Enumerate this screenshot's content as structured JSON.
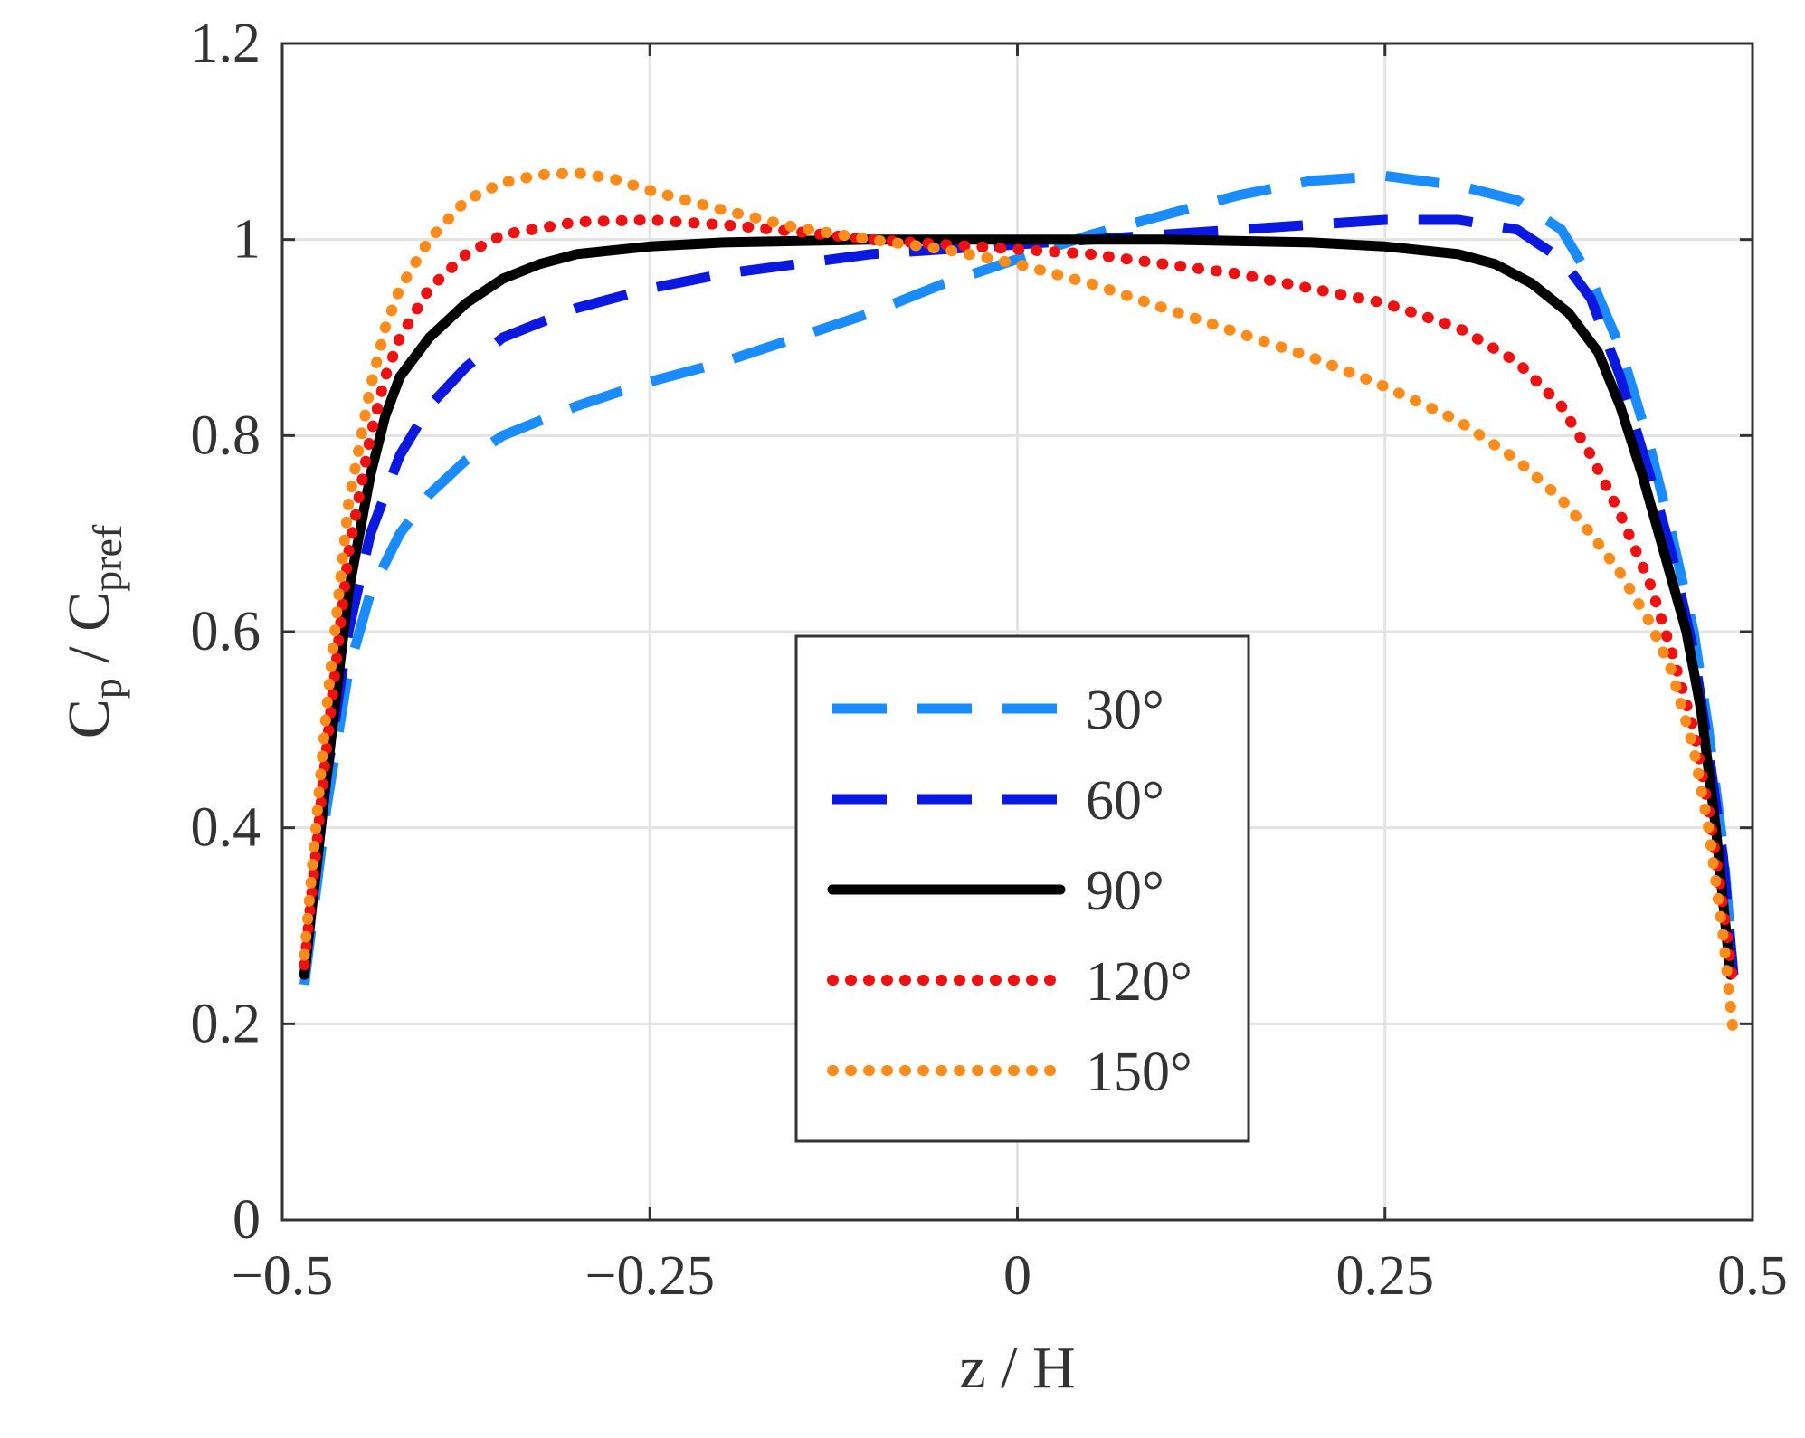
{
  "chart_data": {
    "type": "line",
    "title": "",
    "xlabel": "z / H",
    "ylabel": {
      "main": "C",
      "sub1": "p",
      "sep": " / C",
      "sub2": "pref"
    },
    "xlim": [
      -0.5,
      0.5
    ],
    "ylim": [
      0,
      1.2
    ],
    "xticks": [
      -0.5,
      -0.25,
      0,
      0.25,
      0.5
    ],
    "xtick_labels": [
      "−0.5",
      "−0.25",
      "0",
      "0.25",
      "0.5"
    ],
    "yticks": [
      0,
      0.2,
      0.4,
      0.6,
      0.8,
      1,
      1.2
    ],
    "ytick_labels": [
      "0",
      "0.2",
      "0.4",
      "0.6",
      "0.8",
      "1",
      "1.2"
    ],
    "grid": true,
    "legend_position": "center-bottom",
    "series": [
      {
        "name": "30°",
        "color": "#1a8cff",
        "style": "dashed-long",
        "x": [
          -0.485,
          -0.47,
          -0.455,
          -0.44,
          -0.42,
          -0.4,
          -0.375,
          -0.35,
          -0.3,
          -0.25,
          -0.2,
          -0.15,
          -0.1,
          -0.05,
          0,
          0.05,
          0.1,
          0.15,
          0.2,
          0.25,
          0.3,
          0.34,
          0.37,
          0.39,
          0.41,
          0.43,
          0.445,
          0.46,
          0.47,
          0.48,
          0.487
        ],
        "y": [
          0.24,
          0.42,
          0.56,
          0.64,
          0.7,
          0.74,
          0.775,
          0.8,
          0.83,
          0.855,
          0.875,
          0.9,
          0.925,
          0.955,
          0.98,
          1.005,
          1.025,
          1.045,
          1.06,
          1.065,
          1.055,
          1.04,
          1.01,
          0.96,
          0.89,
          0.79,
          0.7,
          0.6,
          0.5,
          0.38,
          0.25
        ]
      },
      {
        "name": "60°",
        "color": "#0a18e0",
        "style": "dashed-long",
        "x": [
          -0.485,
          -0.47,
          -0.455,
          -0.44,
          -0.42,
          -0.4,
          -0.375,
          -0.35,
          -0.3,
          -0.25,
          -0.2,
          -0.15,
          -0.1,
          -0.05,
          0,
          0.05,
          0.1,
          0.15,
          0.2,
          0.25,
          0.3,
          0.34,
          0.37,
          0.39,
          0.41,
          0.43,
          0.445,
          0.46,
          0.47,
          0.48,
          0.487
        ],
        "y": [
          0.25,
          0.45,
          0.6,
          0.7,
          0.78,
          0.83,
          0.87,
          0.9,
          0.93,
          0.95,
          0.965,
          0.975,
          0.985,
          0.99,
          0.995,
          1.0,
          1.005,
          1.01,
          1.015,
          1.02,
          1.02,
          1.01,
          0.98,
          0.94,
          0.86,
          0.76,
          0.68,
          0.58,
          0.48,
          0.37,
          0.25
        ]
      },
      {
        "name": "90°",
        "color": "#000000",
        "style": "solid",
        "x": [
          -0.485,
          -0.47,
          -0.455,
          -0.44,
          -0.43,
          -0.42,
          -0.4,
          -0.375,
          -0.35,
          -0.325,
          -0.3,
          -0.25,
          -0.2,
          -0.1,
          0,
          0.1,
          0.2,
          0.25,
          0.3,
          0.325,
          0.35,
          0.375,
          0.395,
          0.41,
          0.425,
          0.44,
          0.455,
          0.465,
          0.475,
          0.485
        ],
        "y": [
          0.25,
          0.45,
          0.64,
          0.76,
          0.82,
          0.86,
          0.9,
          0.935,
          0.96,
          0.975,
          0.985,
          0.993,
          0.997,
          1.0,
          1.0,
          1.0,
          0.997,
          0.993,
          0.985,
          0.975,
          0.955,
          0.925,
          0.885,
          0.83,
          0.76,
          0.68,
          0.6,
          0.52,
          0.4,
          0.25
        ]
      },
      {
        "name": "120°",
        "color": "#ee1111",
        "style": "dotted",
        "x": [
          -0.485,
          -0.47,
          -0.455,
          -0.44,
          -0.43,
          -0.42,
          -0.4,
          -0.375,
          -0.35,
          -0.3,
          -0.25,
          -0.2,
          -0.15,
          -0.1,
          -0.05,
          0,
          0.05,
          0.1,
          0.15,
          0.2,
          0.25,
          0.3,
          0.34,
          0.37,
          0.39,
          0.41,
          0.43,
          0.445,
          0.46,
          0.47,
          0.48,
          0.487
        ],
        "y": [
          0.26,
          0.48,
          0.68,
          0.8,
          0.86,
          0.9,
          0.95,
          0.985,
          1.005,
          1.018,
          1.02,
          1.015,
          1.008,
          1.0,
          0.995,
          0.99,
          0.985,
          0.975,
          0.965,
          0.95,
          0.935,
          0.91,
          0.875,
          0.83,
          0.78,
          0.72,
          0.65,
          0.58,
          0.5,
          0.42,
          0.32,
          0.24
        ]
      },
      {
        "name": "150°",
        "color": "#ff8c1a",
        "style": "dotted",
        "x": [
          -0.485,
          -0.47,
          -0.455,
          -0.44,
          -0.43,
          -0.42,
          -0.4,
          -0.375,
          -0.35,
          -0.325,
          -0.3,
          -0.275,
          -0.25,
          -0.2,
          -0.15,
          -0.1,
          -0.05,
          0,
          0.05,
          0.1,
          0.15,
          0.2,
          0.25,
          0.3,
          0.34,
          0.37,
          0.39,
          0.41,
          0.43,
          0.445,
          0.46,
          0.47,
          0.48,
          0.487
        ],
        "y": [
          0.27,
          0.52,
          0.73,
          0.85,
          0.91,
          0.95,
          1.0,
          1.04,
          1.058,
          1.066,
          1.068,
          1.062,
          1.05,
          1.03,
          1.012,
          1.0,
          0.99,
          0.975,
          0.955,
          0.93,
          0.905,
          0.88,
          0.85,
          0.815,
          0.775,
          0.735,
          0.7,
          0.66,
          0.61,
          0.56,
          0.48,
          0.4,
          0.29,
          0.19
        ]
      }
    ]
  }
}
